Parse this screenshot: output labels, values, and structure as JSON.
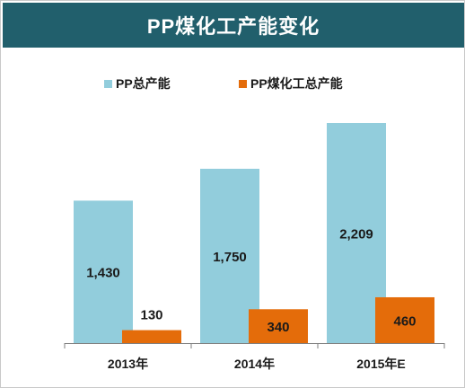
{
  "chart_data": {
    "type": "bar",
    "title": "PP煤化工产能变化",
    "categories": [
      "2013年",
      "2014年",
      "2015年E"
    ],
    "series": [
      {
        "name": "PP总产能",
        "values": [
          1430,
          1750,
          2209
        ],
        "color": "#92cddc"
      },
      {
        "name": "PP煤化工总产能",
        "values": [
          130,
          340,
          460
        ],
        "color": "#e46c0a"
      }
    ],
    "data_labels": [
      [
        "1,430",
        "1,750",
        "2,209"
      ],
      [
        "130",
        "340",
        "460"
      ]
    ],
    "ylim": [
      0,
      2400
    ],
    "grid": false,
    "legend_position": "top"
  },
  "colors": {
    "title_bar": "#215f6c",
    "axis": "#7f7f7f"
  }
}
